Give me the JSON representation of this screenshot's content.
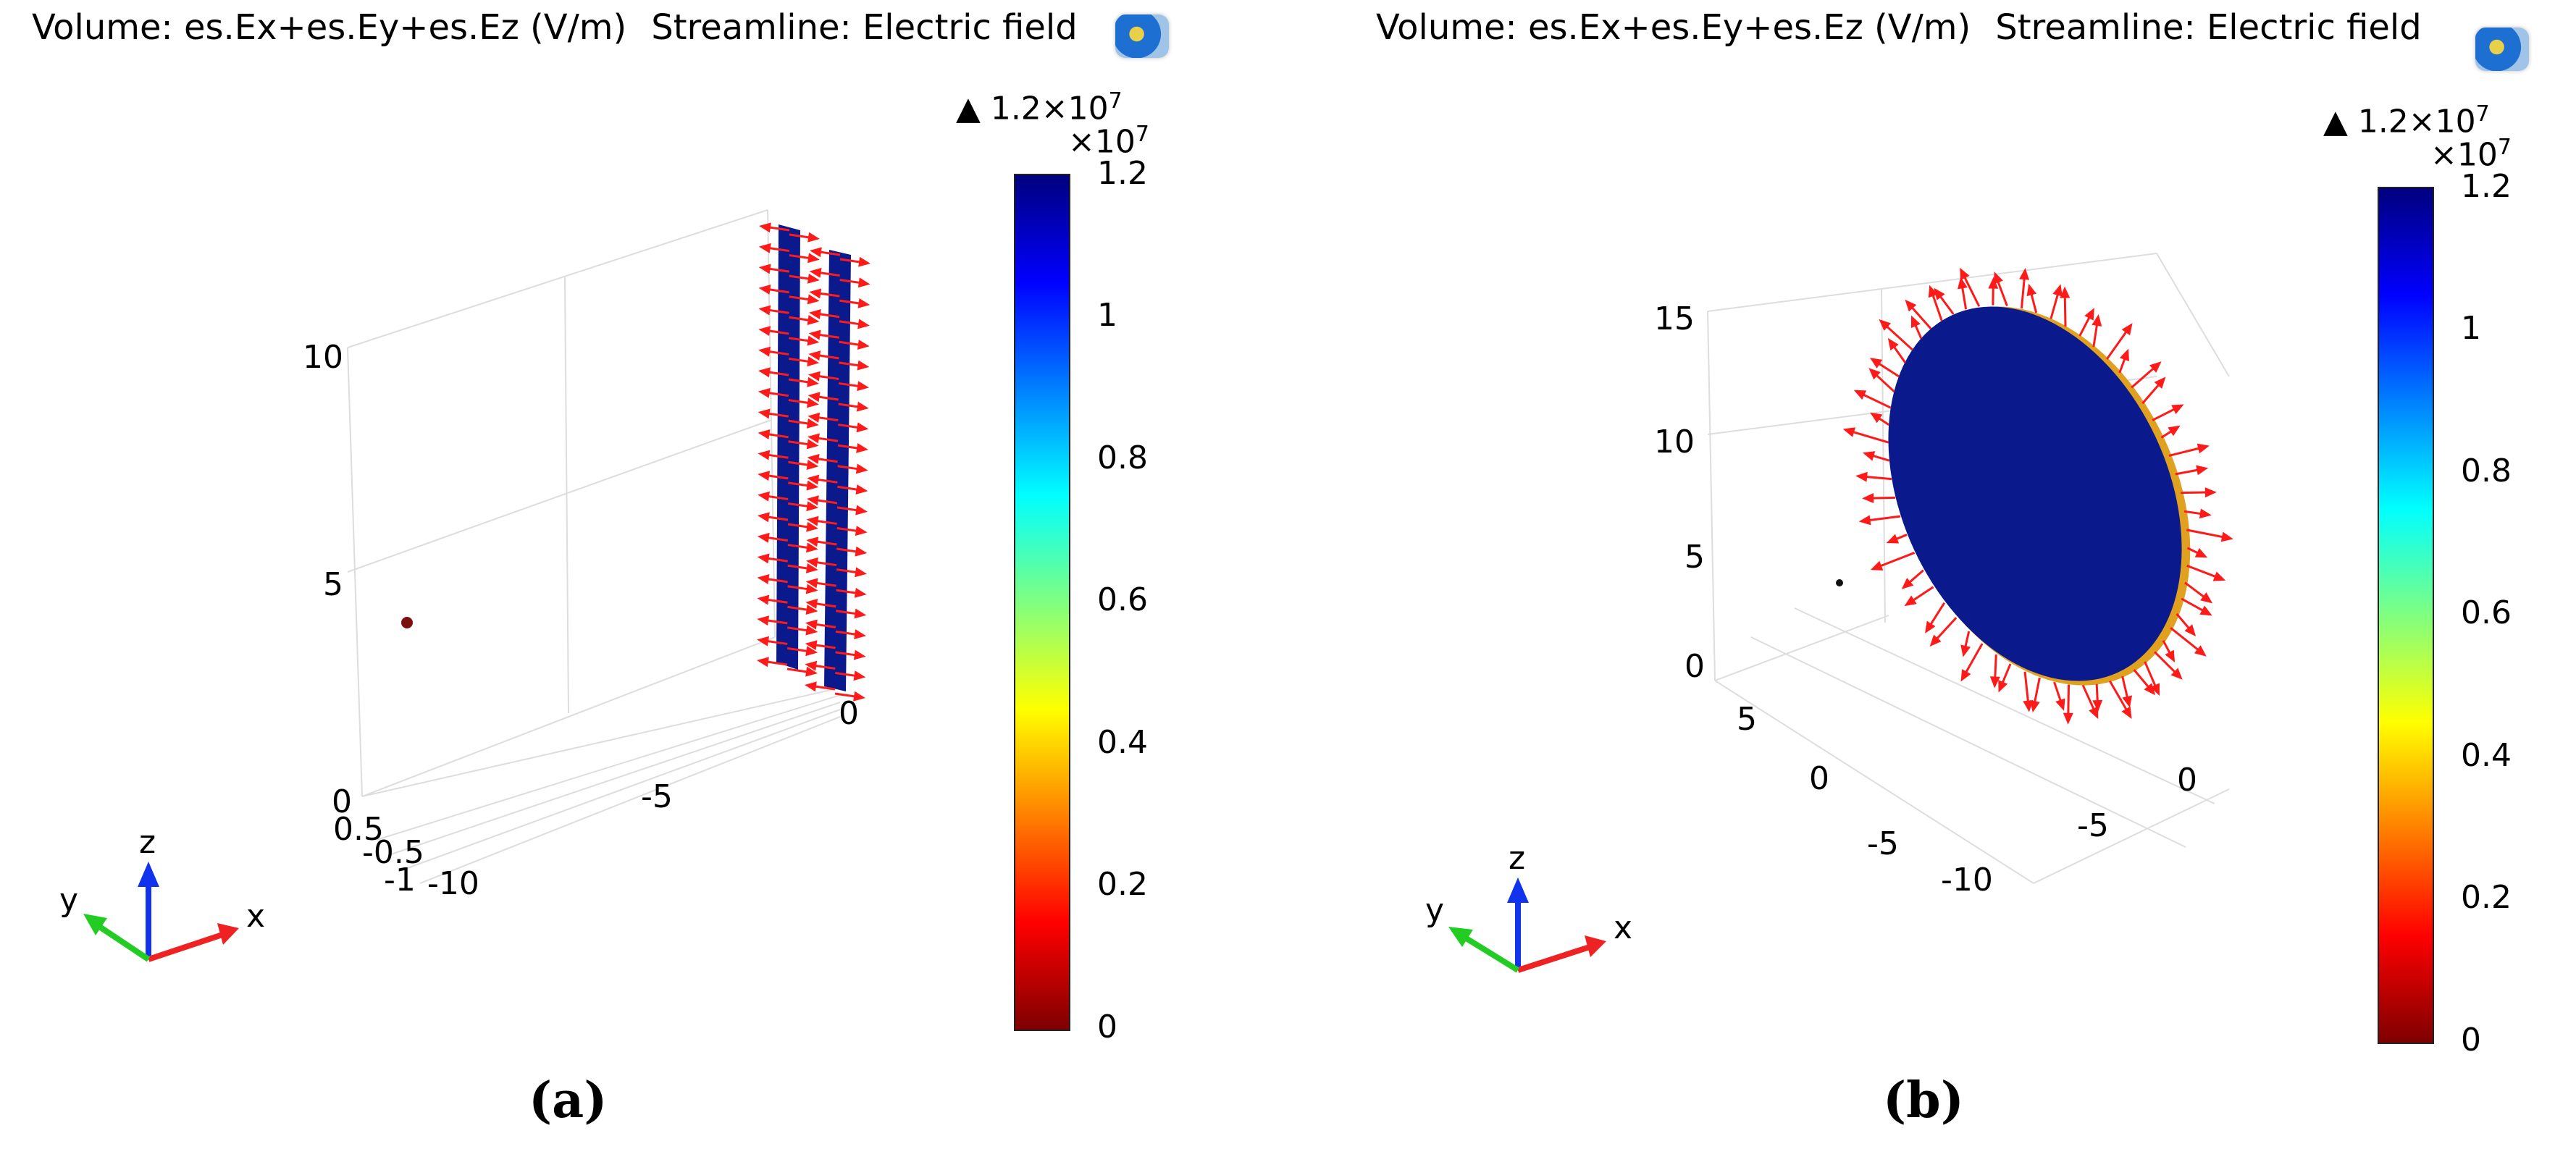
{
  "colors": {
    "solid": "#0a1a8c",
    "arrow": "#ff1a1a",
    "axis_x": "#ee2222",
    "axis_y": "#22cc22",
    "axis_z": "#1133ee",
    "grid": "#dddddd",
    "point": "#7a1010"
  },
  "colorbar_gradient": [
    "#7f0000",
    "#ff0000",
    "#ff8000",
    "#ffff00",
    "#80ff80",
    "#00ffff",
    "#0080ff",
    "#0000ff",
    "#00007f"
  ],
  "panels": [
    {
      "id": "a",
      "title_volume": "Volume: es.Ex+es.Ey+es.Ez (V/m)",
      "title_streamline": "Streamline: Electric field",
      "logo_icon": "comsol-logo-icon",
      "max_marker": "▲ 1.2×10",
      "max_marker_exp": "7",
      "colorbar_scale": "×10",
      "colorbar_scale_exp": "7",
      "colorbar_ticks": [
        "1.2",
        "1",
        "0.8",
        "0.6",
        "0.4",
        "0.2",
        "0"
      ],
      "z_ticks": [
        "10",
        "5",
        "0"
      ],
      "x_ticks": [
        "0",
        "-5"
      ],
      "y_ticks": [
        "0.5",
        "-0.5",
        "-1",
        "-10"
      ],
      "triad": {
        "x": "x",
        "y": "y",
        "z": "z"
      },
      "caption": "(a)"
    },
    {
      "id": "b",
      "title_volume": "Volume: es.Ex+es.Ey+es.Ez (V/m)",
      "title_streamline": "Streamline: Electric field",
      "logo_icon": "comsol-logo-icon",
      "max_marker": "▲ 1.2×10",
      "max_marker_exp": "7",
      "colorbar_scale": "×10",
      "colorbar_scale_exp": "7",
      "colorbar_ticks": [
        "1.2",
        "1",
        "0.8",
        "0.6",
        "0.4",
        "0.2",
        "0"
      ],
      "z_ticks": [
        "15",
        "10",
        "5",
        "0"
      ],
      "y_ticks": [
        "5",
        "0"
      ],
      "x_ticks": [
        "0",
        "-5",
        "-10"
      ],
      "inner_ticks": [
        "-5"
      ],
      "triad": {
        "x": "x",
        "y": "y",
        "z": "z"
      },
      "caption": "(b)"
    }
  ]
}
